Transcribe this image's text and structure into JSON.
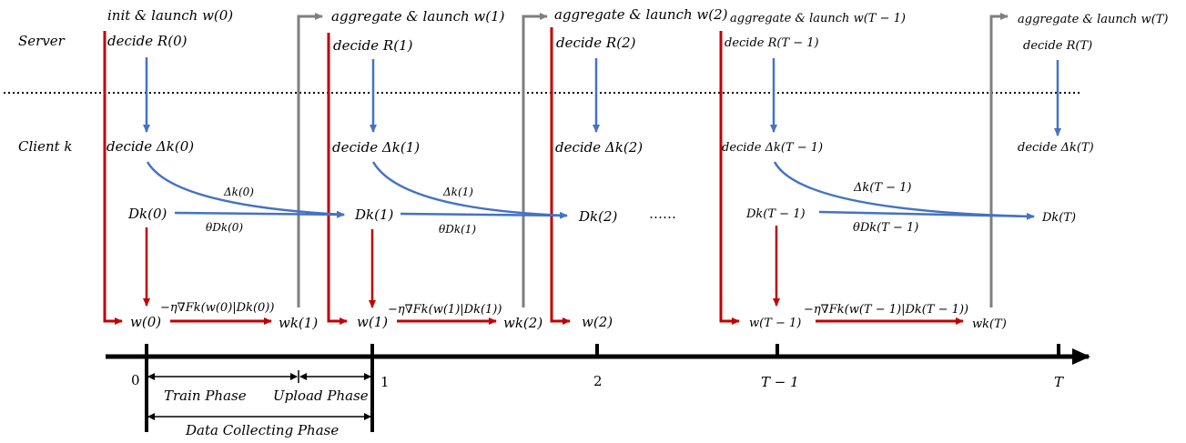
{
  "rows": {
    "server": "Server",
    "client": "Client k"
  },
  "top_labels": {
    "t0": "init & launch w(0)",
    "t1": "aggregate & launch w(1)",
    "t2": "aggregate & launch w(2)",
    "t3": "aggregate & launch w(T − 1)",
    "t4": "aggregate & launch w(T)"
  },
  "decide_R": [
    "decide R(0)",
    "decide R(1)",
    "decide R(2)",
    "decide R(T − 1)",
    "decide R(T)"
  ],
  "decide_Delta": [
    "decide Δk(0)",
    "decide Δk(1)",
    "decide Δk(2)",
    "decide Δk(T − 1)",
    "decide Δk(T)"
  ],
  "datasets": [
    "Dk(0)",
    "Dk(1)",
    "Dk(2)",
    "Dk(T − 1)",
    "Dk(T)"
  ],
  "ellipsis": "……",
  "delta_arrows": [
    "Δk(0)",
    "Δk(1)",
    "Δk(T − 1)"
  ],
  "theta_labels": [
    "θDk(0)",
    "θDk(1)",
    "θDk(T − 1)"
  ],
  "models_w": [
    "w(0)",
    "w(1)",
    "w(2)",
    "w(T − 1)"
  ],
  "models_wk": [
    "wk(1)",
    "wk(2)",
    "wk(T)"
  ],
  "grad_labels": [
    "−η∇Fk(w(0)|Dk(0))",
    "−η∇Fk(w(1)|Dk(1))",
    "−η∇Fk(w(T − 1)|Dk(T − 1))"
  ],
  "timeline_ticks": [
    "0",
    "1",
    "2",
    "T − 1",
    "T"
  ],
  "phases": {
    "train": "Train Phase",
    "upload": "Upload Phase",
    "collect": "Data Collecting Phase"
  },
  "colors": {
    "red": "#c00000",
    "blue": "#4472c4",
    "gray": "#7f7f7f",
    "black": "#000000"
  }
}
